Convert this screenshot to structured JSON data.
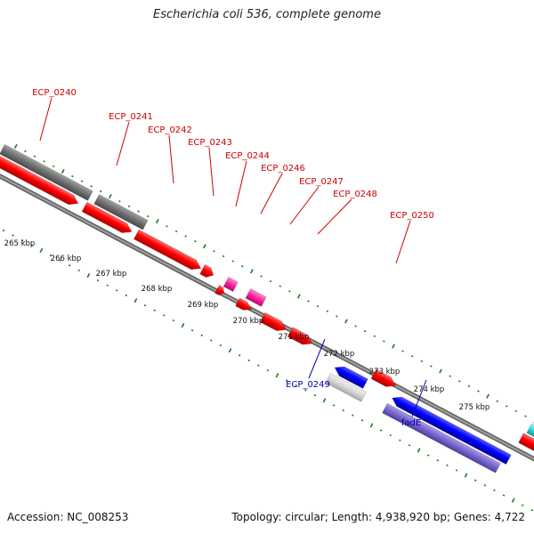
{
  "title": "Escherichia coli 536, complete genome",
  "footer": {
    "accession": "Accession: NC_008253",
    "info": "Topology: circular; Length: 4,938,920 bp; Genes: 4,722"
  },
  "colors": {
    "forward_cds": "#ff0000",
    "reverse_cds": "#0000ff",
    "gray_feature": "#6e6e6e",
    "magenta_feature": "#ff33aa",
    "light_gray_feature": "#d8d8d8",
    "purple_feature": "#7766cc",
    "cyan_feature": "#22dddd",
    "forward_label": "#cc0000",
    "reverse_label": "#0000aa",
    "tick": "#1a7a1a",
    "backbone": "#888888"
  },
  "kbp_labels": [
    "265 kbp",
    "266 kbp",
    "267 kbp",
    "268 kbp",
    "269 kbp",
    "270 kbp",
    "271 kbp",
    "272 kbp",
    "273 kbp",
    "274 kbp",
    "275 kbp"
  ],
  "forward_genes": [
    "ECP_0240",
    "ECP_0241",
    "ECP_0242",
    "ECP_0243",
    "ECP_0244",
    "ECP_0246",
    "ECP_0247",
    "ECP_0248",
    "ECP_0250"
  ],
  "reverse_genes": [
    "ECP_0249",
    "fadE"
  ]
}
